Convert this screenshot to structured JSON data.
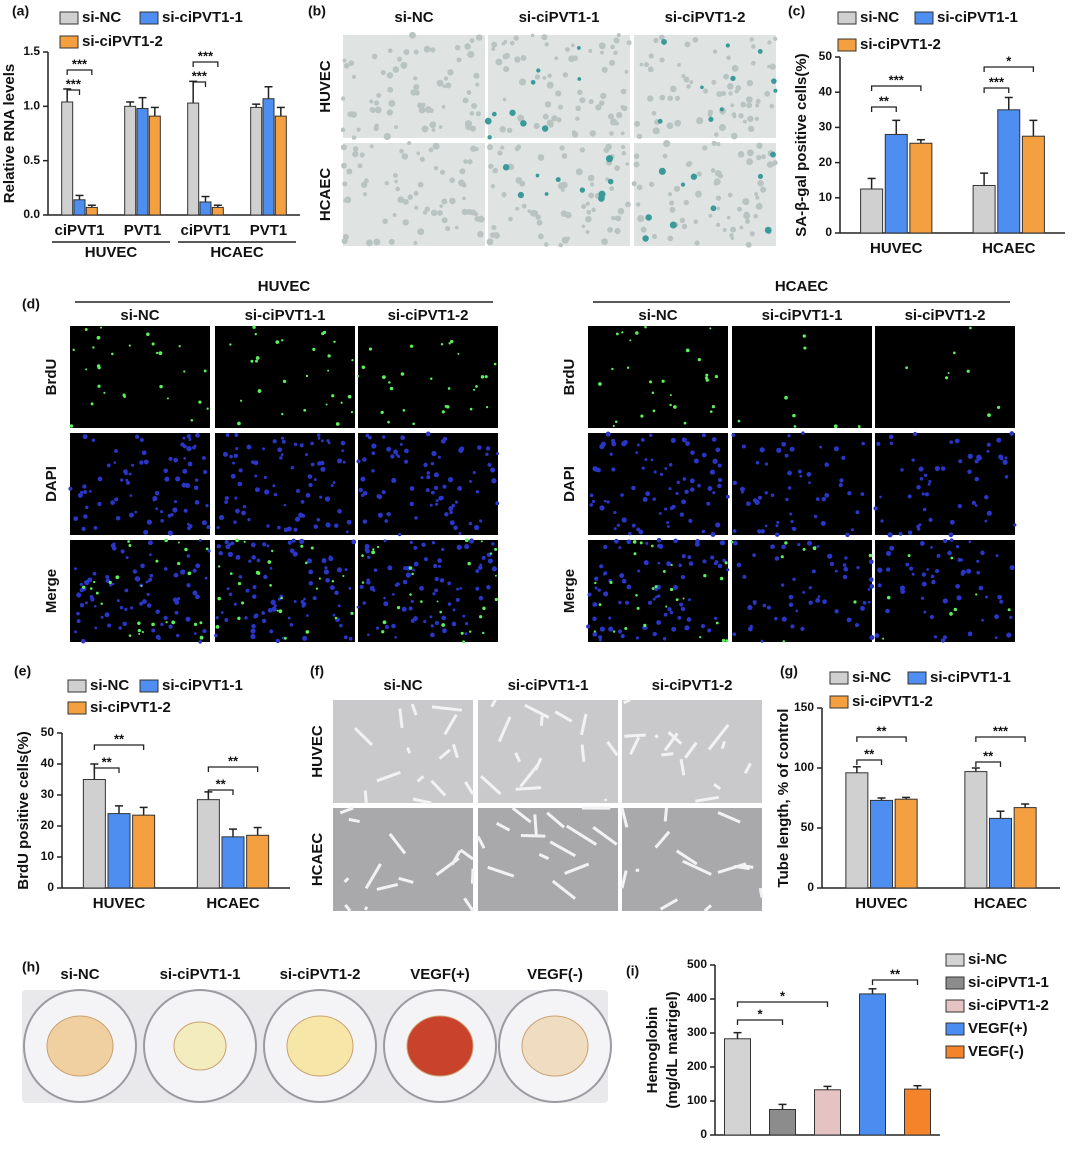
{
  "chart_data": [
    {
      "type": "bar",
      "panel": "(a)",
      "ylabel": "Relative RNA levels",
      "categories": [
        "ciPVT1",
        "PVT1",
        "ciPVT1",
        "PVT1"
      ],
      "groups": [
        "HUVEC",
        "HCAEC"
      ],
      "series": [
        {
          "name": "si-NC",
          "color": "#d0d0d0",
          "values": [
            1.04,
            1.0,
            1.03,
            0.99
          ],
          "errors": [
            0.12,
            0.04,
            0.2,
            0.03
          ]
        },
        {
          "name": "si-ciPVT1-1",
          "color": "#4d8ef0",
          "values": [
            0.14,
            0.98,
            0.12,
            1.07
          ],
          "errors": [
            0.04,
            0.1,
            0.05,
            0.11
          ]
        },
        {
          "name": "si-ciPVT1-2",
          "color": "#f5a040",
          "values": [
            0.07,
            0.91,
            0.07,
            0.91
          ],
          "errors": [
            0.02,
            0.08,
            0.02,
            0.08
          ]
        }
      ],
      "ylim": [
        0,
        1.5
      ],
      "yticks": [
        {
          "value": 0,
          "label": "0.0"
        },
        0.5,
        {
          "value": 1,
          "label": "1.0"
        },
        1.5
      ],
      "annotations": [
        "***",
        "***",
        "***",
        "***"
      ]
    },
    {
      "type": "bar",
      "panel": "(c)",
      "ylabel": "SA-β-gal positive cells(%)",
      "categories": [
        "HUVEC",
        "HCAEC"
      ],
      "series": [
        {
          "name": "si-NC",
          "color": "#d0d0d0",
          "values": [
            12.5,
            13.5
          ],
          "errors": [
            3,
            3.5
          ]
        },
        {
          "name": "si-ciPVT1-1",
          "color": "#4d8ef0",
          "values": [
            28,
            35
          ],
          "errors": [
            4,
            3.5
          ]
        },
        {
          "name": "si-ciPVT1-2",
          "color": "#f5a040",
          "values": [
            25.5,
            27.5
          ],
          "errors": [
            1,
            4.5
          ]
        }
      ],
      "ylim": [
        0,
        50
      ],
      "yticks": [
        0,
        10,
        20,
        30,
        40,
        50
      ],
      "annotations": [
        "**",
        "***",
        "***",
        "*"
      ]
    },
    {
      "type": "bar",
      "panel": "(e)",
      "ylabel": "BrdU positive cells(%)",
      "categories": [
        "HUVEC",
        "HCAEC"
      ],
      "series": [
        {
          "name": "si-NC",
          "color": "#d0d0d0",
          "values": [
            35,
            28.5
          ],
          "errors": [
            5,
            2.5
          ]
        },
        {
          "name": "si-ciPVT1-1",
          "color": "#4d8ef0",
          "values": [
            24,
            16.5
          ],
          "errors": [
            2.5,
            2.5
          ]
        },
        {
          "name": "si-ciPVT1-2",
          "color": "#f5a040",
          "values": [
            23.5,
            17
          ],
          "errors": [
            2.5,
            2.5
          ]
        }
      ],
      "ylim": [
        0,
        50
      ],
      "yticks": [
        0,
        10,
        20,
        30,
        40,
        50
      ],
      "annotations": [
        "**",
        "**",
        "**",
        "**"
      ]
    },
    {
      "type": "bar",
      "panel": "(g)",
      "ylabel": "Tube length, % of control",
      "categories": [
        "HUVEC",
        "HCAEC"
      ],
      "series": [
        {
          "name": "si-NC",
          "color": "#d0d0d0",
          "values": [
            96,
            97
          ],
          "errors": [
            5,
            3
          ]
        },
        {
          "name": "si-ciPVT1-1",
          "color": "#4d8ef0",
          "values": [
            73,
            58
          ],
          "errors": [
            2,
            6
          ]
        },
        {
          "name": "si-ciPVT1-2",
          "color": "#f5a040",
          "values": [
            74,
            67
          ],
          "errors": [
            1.5,
            3
          ]
        }
      ],
      "ylim": [
        0,
        150
      ],
      "yticks": [
        0,
        50,
        100,
        150
      ],
      "annotations": [
        "**",
        "**",
        "**",
        "***"
      ]
    },
    {
      "type": "bar",
      "panel": "(i)",
      "ylabel": [
        "Hemoglobin",
        "(mg/dL matrigel)"
      ],
      "series": [
        {
          "name": "si-NC",
          "color": "#d3d3d3",
          "values": [
            283
          ],
          "errors": [
            18
          ]
        },
        {
          "name": "si-ciPVT1-1",
          "color": "#8c8c8c",
          "values": [
            75
          ],
          "errors": [
            15
          ]
        },
        {
          "name": "si-ciPVT1-2",
          "color": "#e6c3c3",
          "values": [
            133
          ],
          "errors": [
            10
          ]
        },
        {
          "name": "VEGF(+)",
          "color": "#4a8cf0",
          "values": [
            415
          ],
          "errors": [
            15
          ]
        },
        {
          "name": "VEGF(-)",
          "color": "#f5832a",
          "values": [
            135
          ],
          "errors": [
            10
          ]
        }
      ],
      "ylim": [
        0,
        500
      ],
      "yticks": [
        0,
        100,
        200,
        300,
        400,
        500
      ],
      "annotations": [
        "*",
        "*",
        "**"
      ]
    }
  ],
  "image_panels": [
    {
      "panel": "(b)",
      "columns": [
        "si-NC",
        "si-ciPVT1-1",
        "si-ciPVT1-2"
      ],
      "rows": [
        "HUVEC",
        "HCAEC"
      ]
    },
    {
      "panel": "(d)",
      "groups": [
        {
          "title": "HUVEC",
          "columns": [
            "si-NC",
            "si-ciPVT1-1",
            "si-ciPVT1-2"
          ]
        },
        {
          "title": "HCAEC",
          "columns": [
            "si-NC",
            "si-ciPVT1-1",
            "si-ciPVT1-2"
          ]
        }
      ],
      "rows": [
        "BrdU",
        "DAPI",
        "Merge"
      ]
    },
    {
      "panel": "(f)",
      "columns": [
        "si-NC",
        "si-ciPVT1-1",
        "si-ciPVT1-2"
      ],
      "rows": [
        "HUVEC",
        "HCAEC"
      ]
    },
    {
      "panel": "(h)",
      "columns": [
        "si-NC",
        "si-ciPVT1-1",
        "si-ciPVT1-2",
        "VEGF(+)",
        "VEGF(-)"
      ]
    }
  ]
}
